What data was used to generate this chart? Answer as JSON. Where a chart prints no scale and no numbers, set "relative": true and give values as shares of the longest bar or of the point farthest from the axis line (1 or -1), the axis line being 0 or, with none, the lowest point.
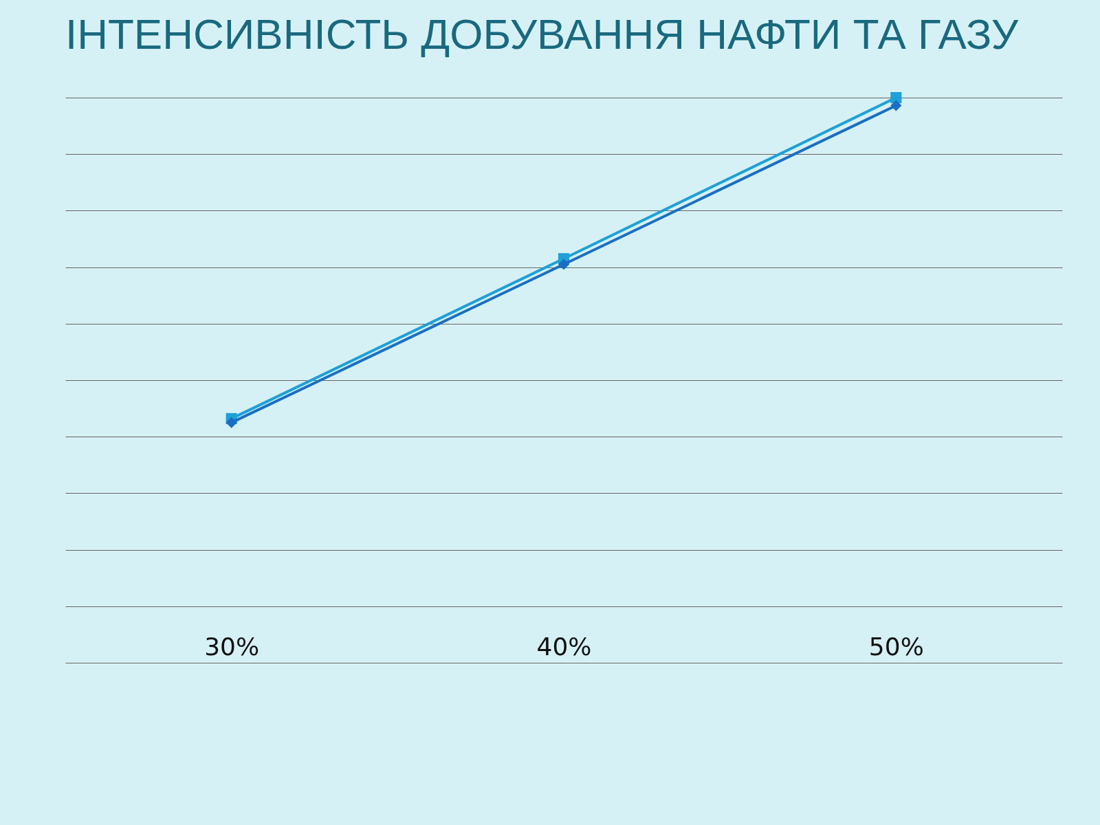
{
  "chart_data": {
    "type": "line",
    "title": "ІНТЕНСИВНІСТЬ ДОБУВАННЯ НАФТИ ТА ГАЗУ",
    "categories": [
      "30%",
      "40%",
      "50%"
    ],
    "relative": true,
    "grid": "y",
    "series": [
      {
        "color": "#1a6fc4",
        "marker": "diamond",
        "values": [
          0.425,
          0.705,
          0.986
        ]
      },
      {
        "color": "#1ea0d8",
        "marker": "square",
        "values": [
          0.432,
          0.715,
          1
        ]
      }
    ]
  }
}
